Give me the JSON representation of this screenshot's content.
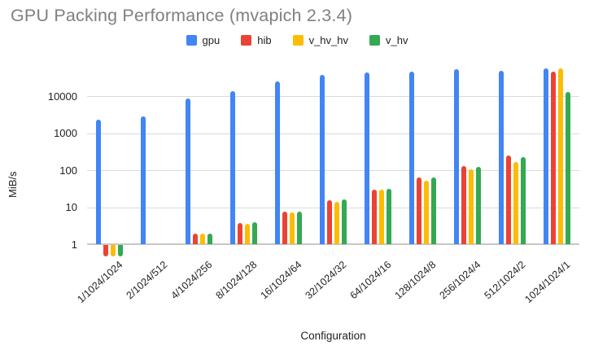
{
  "chart_data": {
    "type": "bar",
    "title": "GPU Packing Performance (mvapich 2.3.4)",
    "xlabel": "Configuration",
    "ylabel": "MiB/s",
    "y_scale": "log",
    "y_ticks": [
      1,
      10,
      100,
      1000,
      10000
    ],
    "ylim": [
      1,
      65000
    ],
    "grid": "horizontal",
    "legend_position": "top",
    "title_color": "#808080",
    "categories": [
      "1/1024/1024",
      "2/1024/512",
      "4/1024/256",
      "8/1024/128",
      "16/1024/64",
      "32/1024/32",
      "64/1024/16",
      "128/1024/8",
      "256/1024/4",
      "512/1024/2",
      "1024/1024/1"
    ],
    "series": [
      {
        "name": "gpu",
        "color": "#4285F4",
        "values": [
          2300,
          2870,
          8600,
          13500,
          25000,
          37500,
          43000,
          46500,
          52000,
          48000,
          56000
        ]
      },
      {
        "name": "hib",
        "color": "#EA4335",
        "values": [
          0.5,
          null,
          1.9,
          3.8,
          7.6,
          15.4,
          30,
          63,
          126,
          248,
          46000
        ]
      },
      {
        "name": "v_hv_hv",
        "color": "#FBBC04",
        "values": [
          0.5,
          null,
          1.9,
          3.6,
          7.3,
          14.2,
          29,
          51,
          107,
          169,
          55000
        ]
      },
      {
        "name": "v_hv",
        "color": "#34A853",
        "values": [
          0.5,
          null,
          1.9,
          3.9,
          7.6,
          16.2,
          31,
          63,
          120,
          229,
          13000
        ]
      }
    ]
  }
}
